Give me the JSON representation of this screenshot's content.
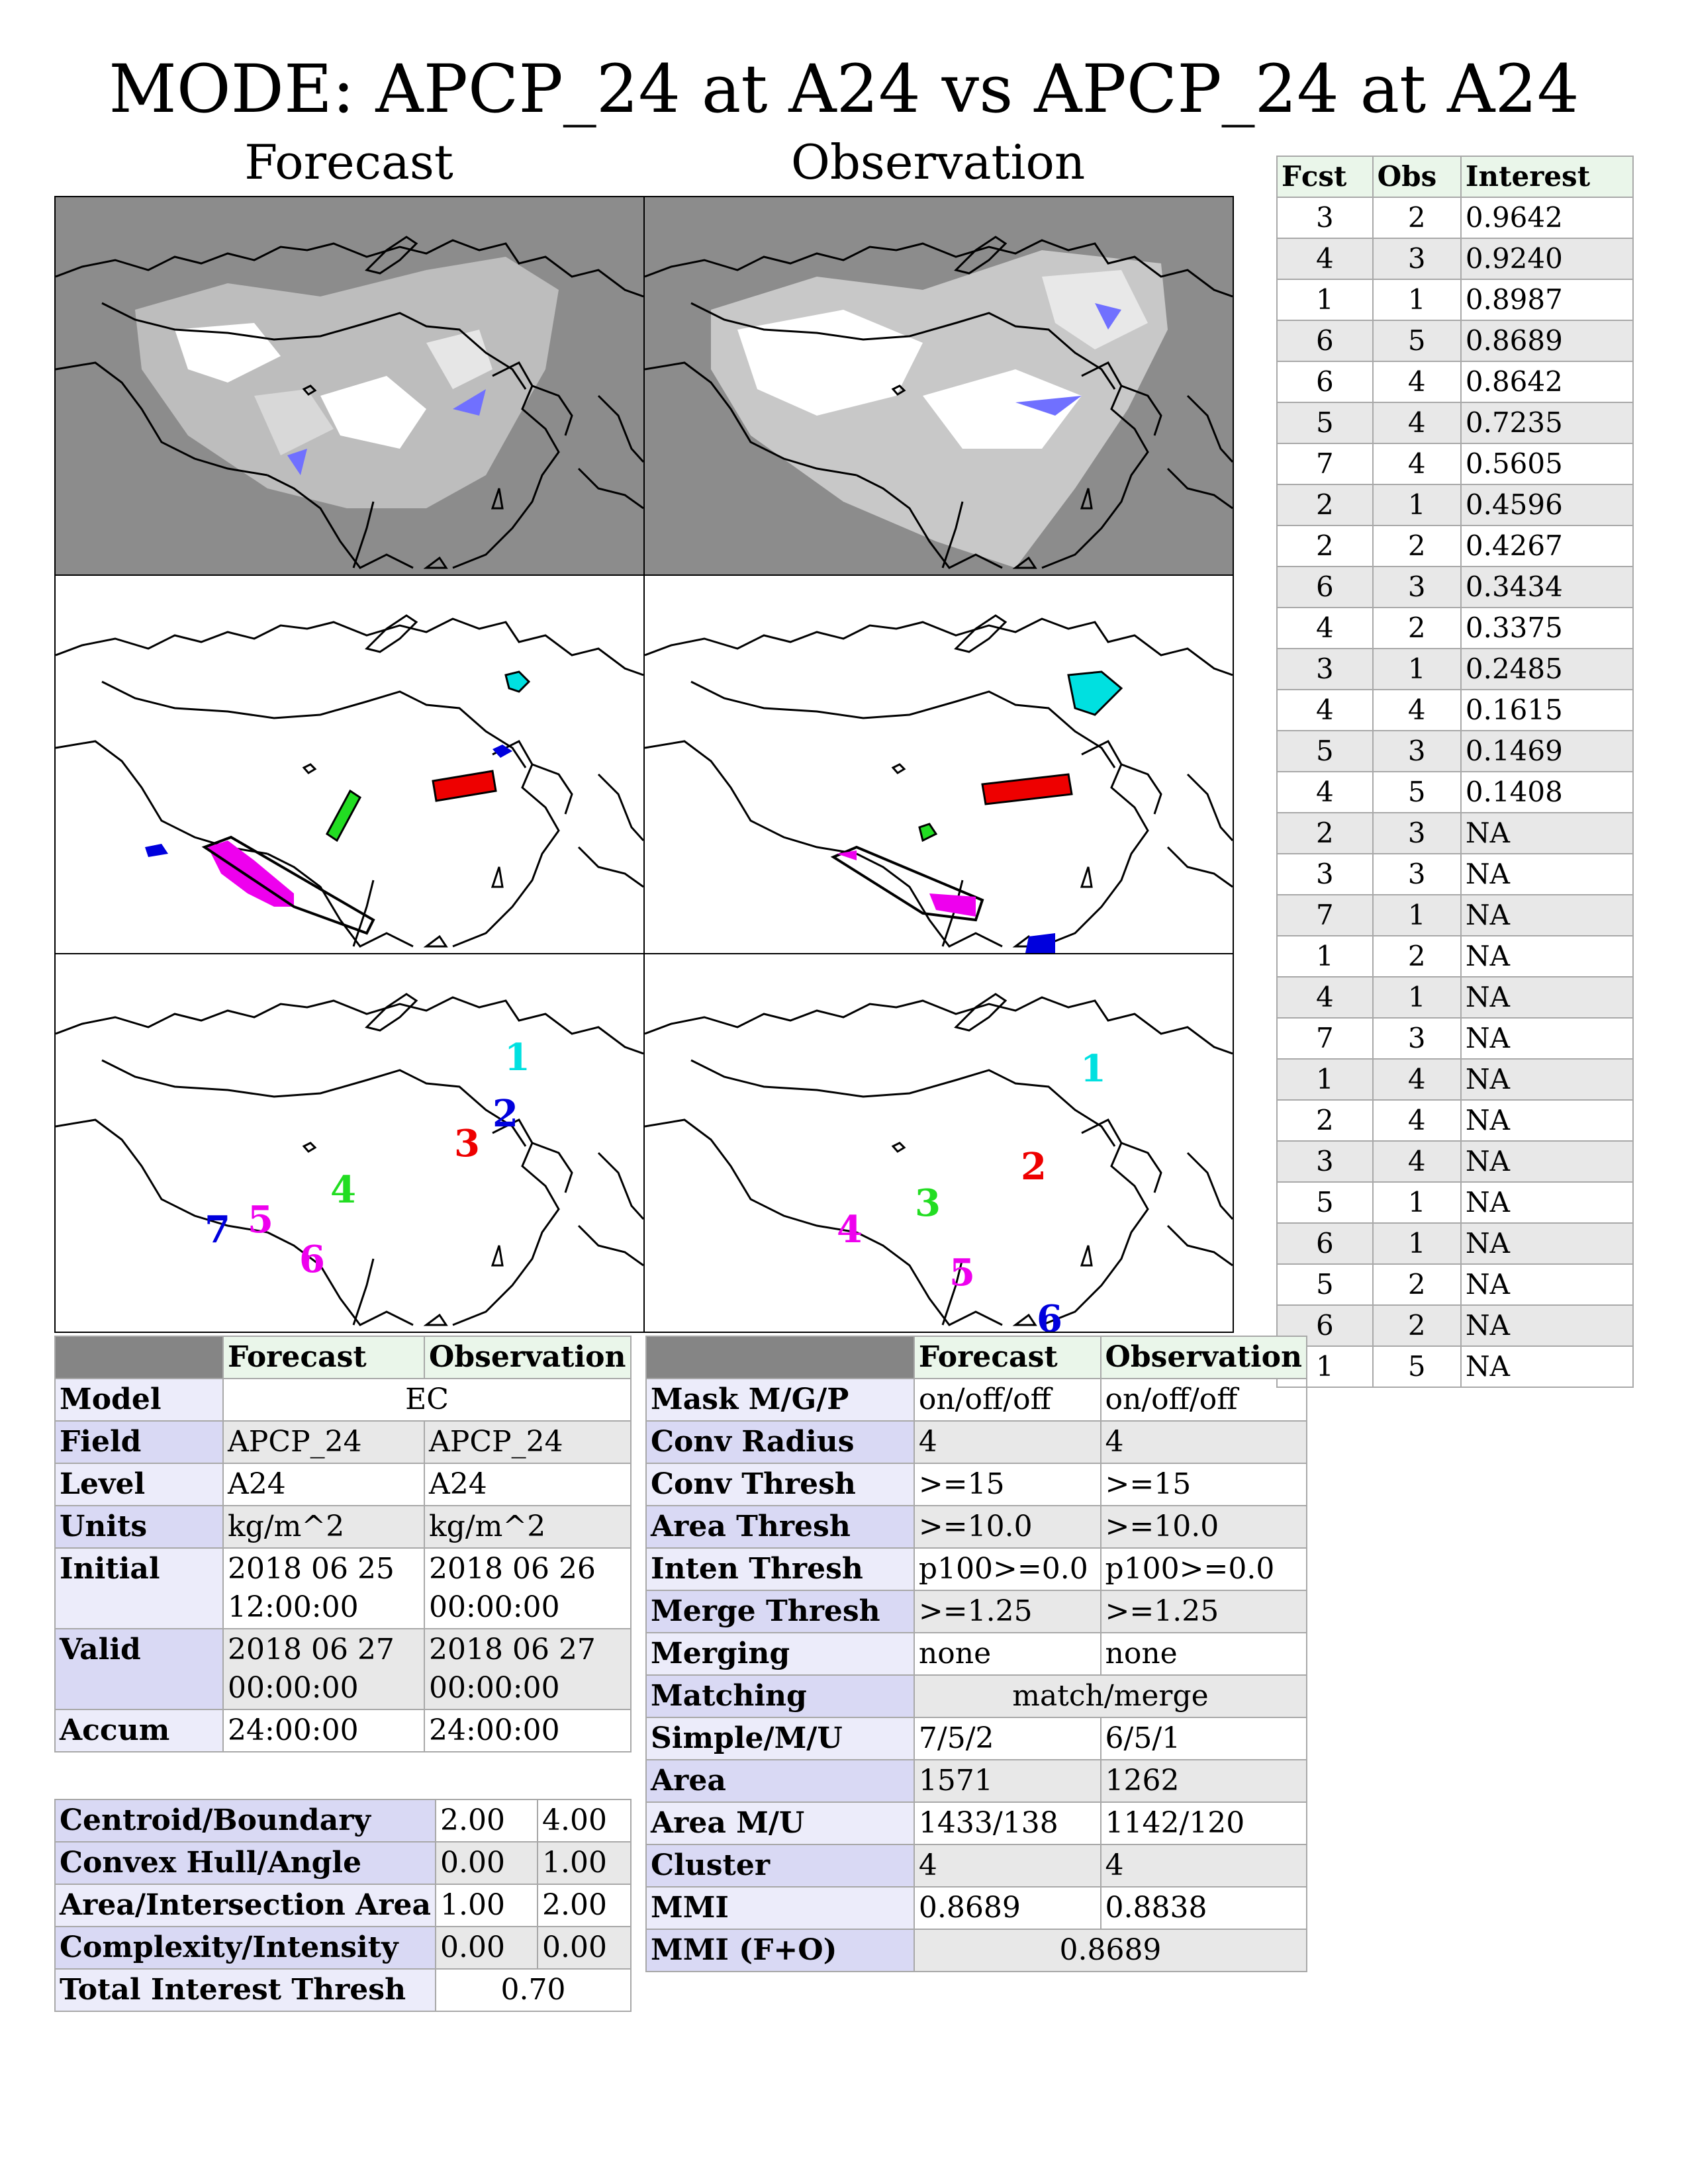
{
  "title": "MODE: APCP_24 at A24 vs APCP_24 at A24",
  "columns": {
    "forecast": "Forecast",
    "observation": "Observation"
  },
  "colors": {
    "object_1": "#00e0e0",
    "object_2": "#0000dd",
    "object_3": "#ee0000",
    "object_4": "#22dd22",
    "object_5": "#ee00ee",
    "map_background_raw": "#8c8c8c"
  },
  "forecast_labels": [
    "1",
    "2",
    "3",
    "4",
    "5",
    "6",
    "7"
  ],
  "observation_labels": [
    "1",
    "2",
    "3",
    "4",
    "5",
    "6"
  ],
  "pairs": {
    "headers": [
      "Fcst",
      "Obs",
      "Interest"
    ],
    "rows": [
      [
        "3",
        "2",
        "0.9642"
      ],
      [
        "4",
        "3",
        "0.9240"
      ],
      [
        "1",
        "1",
        "0.8987"
      ],
      [
        "6",
        "5",
        "0.8689"
      ],
      [
        "6",
        "4",
        "0.8642"
      ],
      [
        "5",
        "4",
        "0.7235"
      ],
      [
        "7",
        "4",
        "0.5605"
      ],
      [
        "2",
        "1",
        "0.4596"
      ],
      [
        "2",
        "2",
        "0.4267"
      ],
      [
        "6",
        "3",
        "0.3434"
      ],
      [
        "4",
        "2",
        "0.3375"
      ],
      [
        "3",
        "1",
        "0.2485"
      ],
      [
        "4",
        "4",
        "0.1615"
      ],
      [
        "5",
        "3",
        "0.1469"
      ],
      [
        "4",
        "5",
        "0.1408"
      ],
      [
        "2",
        "3",
        "NA"
      ],
      [
        "3",
        "3",
        "NA"
      ],
      [
        "7",
        "1",
        "NA"
      ],
      [
        "1",
        "2",
        "NA"
      ],
      [
        "4",
        "1",
        "NA"
      ],
      [
        "7",
        "3",
        "NA"
      ],
      [
        "1",
        "4",
        "NA"
      ],
      [
        "2",
        "4",
        "NA"
      ],
      [
        "3",
        "4",
        "NA"
      ],
      [
        "5",
        "1",
        "NA"
      ],
      [
        "6",
        "1",
        "NA"
      ],
      [
        "5",
        "2",
        "NA"
      ],
      [
        "6",
        "2",
        "NA"
      ],
      [
        "1",
        "5",
        "NA"
      ]
    ]
  },
  "info": {
    "header": [
      "",
      "Forecast",
      "Observation"
    ],
    "model": {
      "label": "Model",
      "value": "EC"
    },
    "field": {
      "label": "Field",
      "fcst": "APCP_24",
      "obs": "APCP_24"
    },
    "level": {
      "label": "Level",
      "fcst": "A24",
      "obs": "A24"
    },
    "units": {
      "label": "Units",
      "fcst": "kg/m^2",
      "obs": "kg/m^2"
    },
    "initial": {
      "label": "Initial",
      "fcst_date": "2018 06 25",
      "fcst_time": "12:00:00",
      "obs_date": "2018 06 26",
      "obs_time": "00:00:00"
    },
    "valid": {
      "label": "Valid",
      "fcst_date": "2018 06 27",
      "fcst_time": "00:00:00",
      "obs_date": "2018 06 27",
      "obs_time": "00:00:00"
    },
    "accum": {
      "label": "Accum",
      "fcst": "24:00:00",
      "obs": "24:00:00"
    }
  },
  "weights": {
    "rows": [
      {
        "label": "Centroid/Boundary",
        "a": "2.00",
        "b": "4.00"
      },
      {
        "label": "Convex Hull/Angle",
        "a": "0.00",
        "b": "1.00"
      },
      {
        "label": "Area/Intersection Area",
        "a": "1.00",
        "b": "2.00"
      },
      {
        "label": "Complexity/Intensity",
        "a": "0.00",
        "b": "0.00"
      }
    ],
    "total": {
      "label": "Total Interest Thresh",
      "value": "0.70"
    }
  },
  "stats": {
    "header": [
      "",
      "Forecast",
      "Observation"
    ],
    "rows": [
      {
        "label": "Mask M/G/P",
        "fcst": "on/off/off",
        "obs": "on/off/off"
      },
      {
        "label": "Conv Radius",
        "fcst": "4",
        "obs": "4"
      },
      {
        "label": "Conv Thresh",
        "fcst": ">=15",
        "obs": ">=15"
      },
      {
        "label": "Area Thresh",
        "fcst": ">=10.0",
        "obs": ">=10.0"
      },
      {
        "label": "Inten Thresh",
        "fcst": "p100>=0.0",
        "obs": "p100>=0.0"
      },
      {
        "label": "Merge Thresh",
        "fcst": ">=1.25",
        "obs": ">=1.25"
      },
      {
        "label": "Merging",
        "fcst": "none",
        "obs": "none"
      },
      {
        "label": "Matching",
        "both": "match/merge"
      },
      {
        "label": "Simple/M/U",
        "fcst": "7/5/2",
        "obs": "6/5/1"
      },
      {
        "label": "Area",
        "fcst": "1571",
        "obs": "1262"
      },
      {
        "label": "Area M/U",
        "fcst": "1433/138",
        "obs": "1142/120"
      },
      {
        "label": "Cluster",
        "fcst": "4",
        "obs": "4"
      },
      {
        "label": "MMI",
        "fcst": "0.8689",
        "obs": "0.8838"
      },
      {
        "label": "MMI (F+O)",
        "both": "0.8689"
      }
    ]
  }
}
